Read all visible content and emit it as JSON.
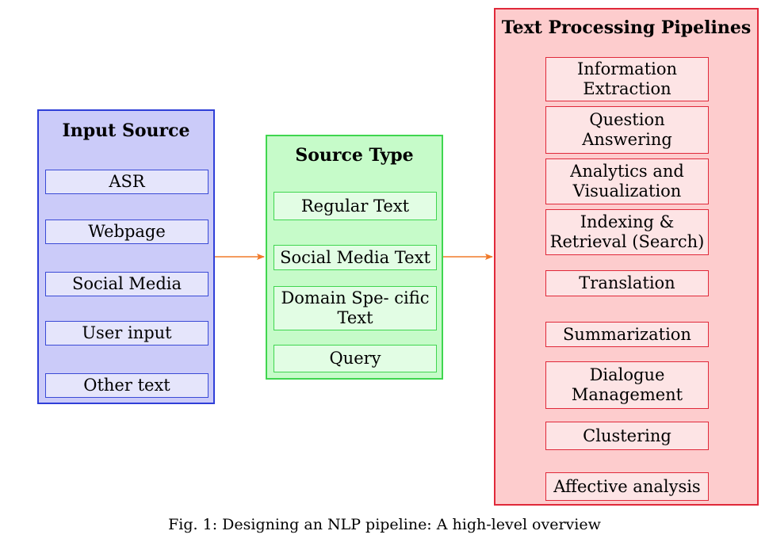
{
  "input_source": {
    "title": "Input Source",
    "items": [
      "ASR",
      "Webpage",
      "Social Media",
      "User input",
      "Other text"
    ]
  },
  "source_type": {
    "title": "Source Type",
    "items": [
      "Regular Text",
      "Social Media Text",
      "Domain Spe- cific Text",
      "Query"
    ]
  },
  "pipelines": {
    "title": "Text Processing Pipelines",
    "items": [
      "Information Extraction",
      "Question Answering",
      "Analytics and Visualization",
      "Indexing & Retrieval (Search)",
      "Translation",
      "Summarization",
      "Dialogue Management",
      "Clustering",
      "Affective analysis"
    ]
  },
  "caption": "Fig. 1: Designing an NLP pipeline: A high-level overview",
  "colors": {
    "input_fill": "#cbcbf9",
    "input_border": "#2f3fd8",
    "type_fill": "#c6fbc9",
    "type_border": "#3fd64f",
    "pipeline_fill": "#fdcccd",
    "pipeline_border": "#e0293a",
    "arrow": "#f07a2a"
  }
}
